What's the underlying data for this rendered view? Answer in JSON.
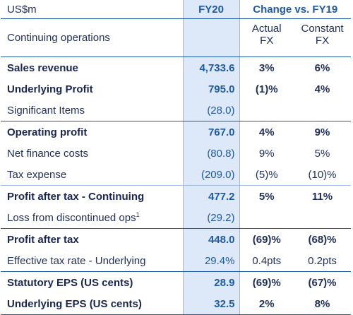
{
  "header": {
    "unit": "US$m",
    "period": "FY20",
    "change_title": "Change vs. FY19"
  },
  "subheader": {
    "label": "Continuing operations",
    "actual_fx_line1": "Actual",
    "actual_fx_line2": "FX",
    "constant_fx_line1": "Constant",
    "constant_fx_line2": "FX"
  },
  "rows": [
    {
      "label": "Sales revenue",
      "fy20": "4,733.6",
      "actual": "3%",
      "constant": "6%"
    },
    {
      "label": "Underlying Profit",
      "fy20": "795.0",
      "actual": "(1)%",
      "constant": "4%"
    },
    {
      "label": "Significant Items",
      "fy20": "(28.0)",
      "actual": "",
      "constant": ""
    },
    {
      "label": "Operating profit",
      "fy20": "767.0",
      "actual": "4%",
      "constant": "9%"
    },
    {
      "label": "Net finance costs",
      "fy20": "(80.8)",
      "actual": "9%",
      "constant": "5%"
    },
    {
      "label": "Tax expense",
      "fy20": "(209.0)",
      "actual": "(5)%",
      "constant": "(10)%"
    },
    {
      "label": "Profit after tax - Continuing",
      "fy20": "477.2",
      "actual": "5%",
      "constant": "11%"
    },
    {
      "label": "Loss from discontinued ops",
      "footnote": "1",
      "fy20": "(29.2)",
      "actual": "",
      "constant": ""
    },
    {
      "label": "Profit after tax",
      "fy20": "448.0",
      "actual": "(69)%",
      "constant": "(68)%"
    },
    {
      "label": "Effective tax rate - Underlying",
      "fy20": "29.4%",
      "actual": "0.4pts",
      "constant": "0.2pts"
    },
    {
      "label": "Statutory EPS (US cents)",
      "fy20": "28.9",
      "actual": "(69)%",
      "constant": "(67)%"
    },
    {
      "label": "Underlying EPS (US cents)",
      "fy20": "32.5",
      "actual": "2%",
      "constant": "8%"
    }
  ]
}
